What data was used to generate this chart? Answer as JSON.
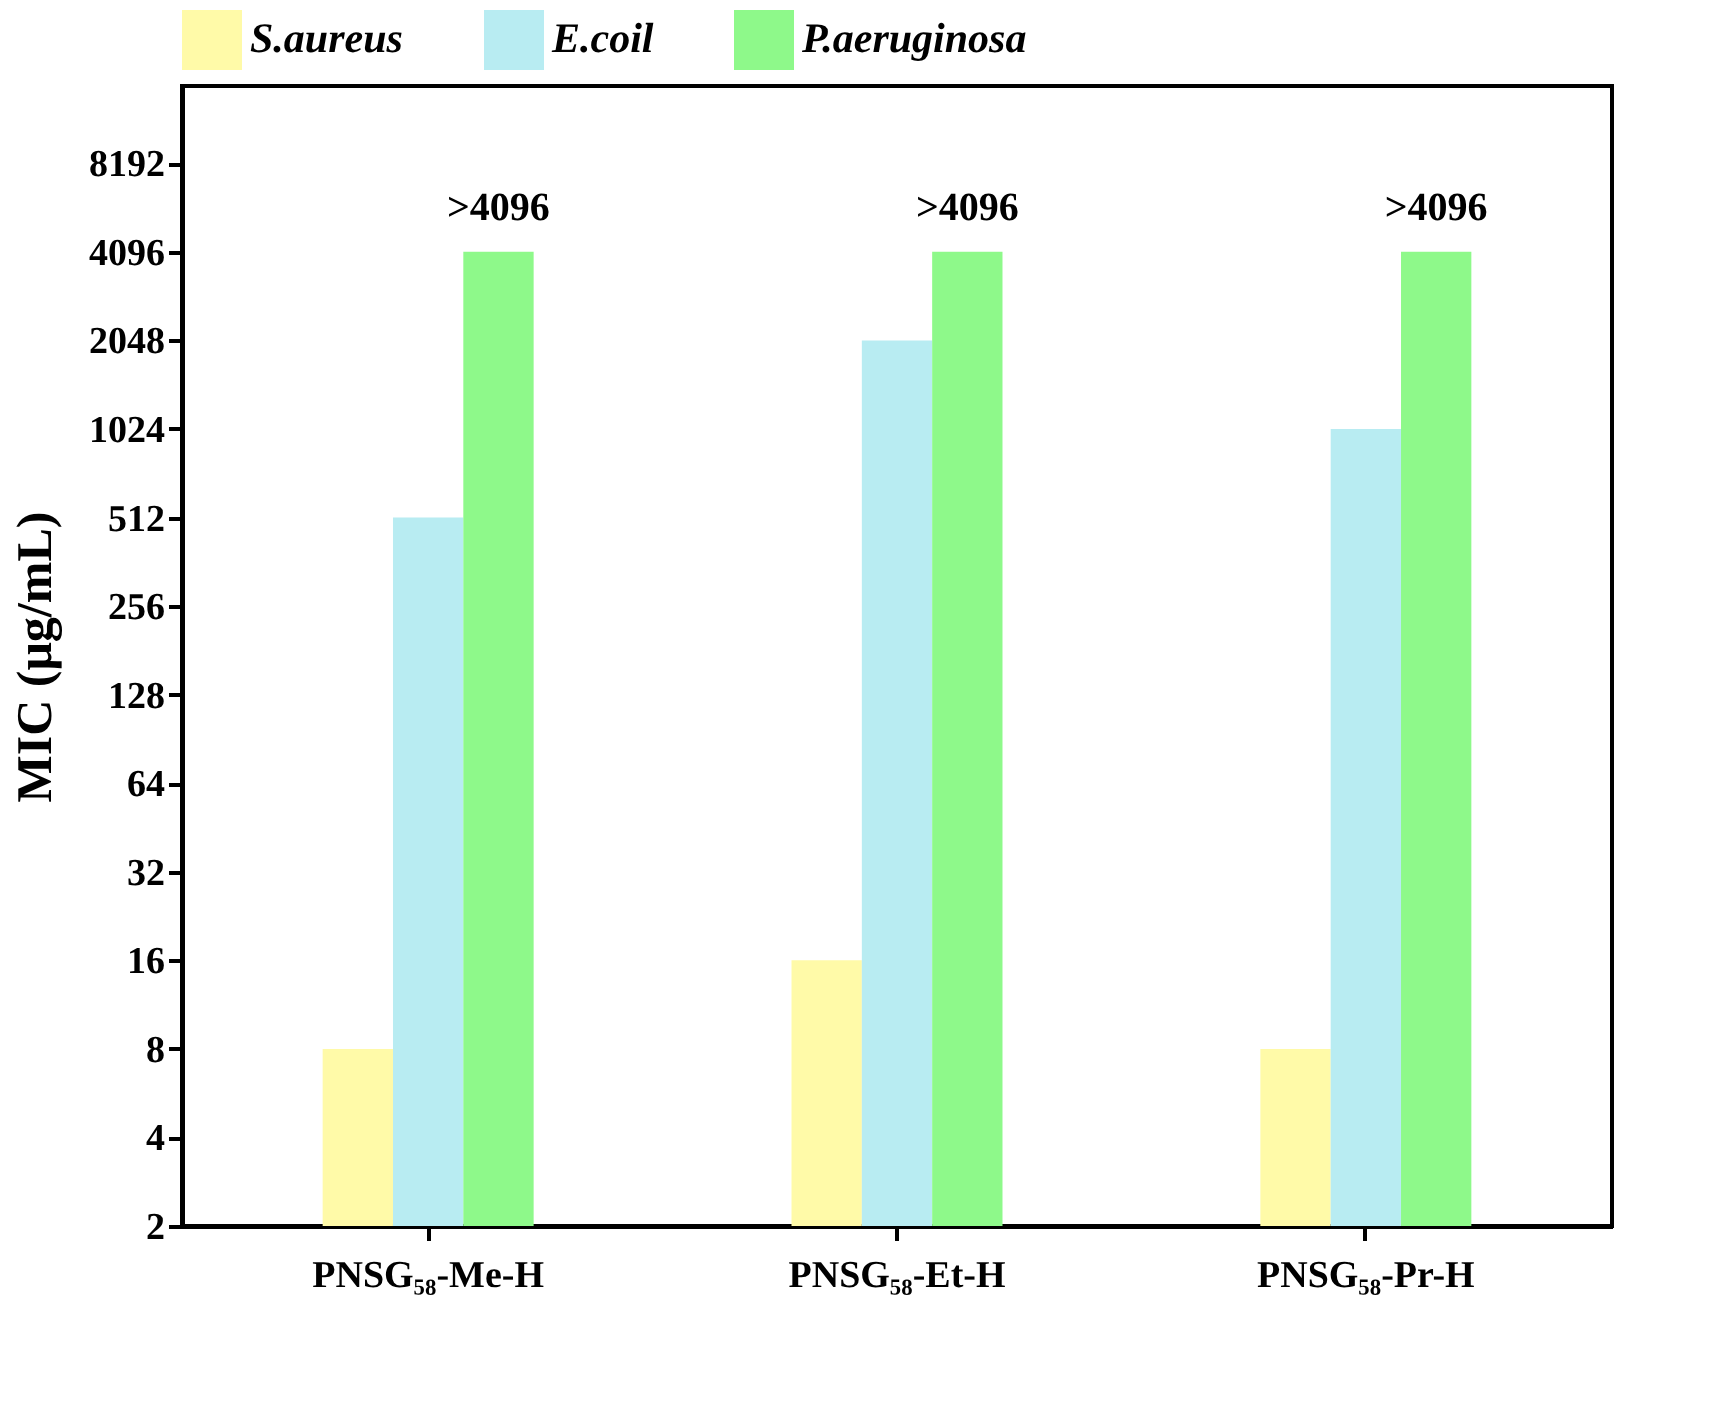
{
  "chart_data": {
    "type": "bar",
    "ylabel": "MIC (μg/mL)",
    "categories": [
      "PNSG₅₈-Me-H",
      "PNSG₅₈-Et-H",
      "PNSG₅₈-Pr-H"
    ],
    "series": [
      {
        "name": "S.aureus",
        "color": "#fffaa8",
        "values": [
          8,
          16,
          8
        ]
      },
      {
        "name": "E.coil",
        "color": "#b8ecf2",
        "values": [
          512,
          2048,
          1024
        ]
      },
      {
        "name": "P.aeruginosa",
        "color": "#8ef98a",
        "values": [
          4096,
          4096,
          4096
        ],
        "value_labels": [
          ">4096",
          ">4096",
          ">4096"
        ]
      }
    ],
    "log": "y",
    "ylim": [
      2,
      15000
    ],
    "yticks": [
      2,
      4,
      8,
      16,
      32,
      64,
      128,
      256,
      512,
      1024,
      2048,
      4096,
      8192
    ],
    "grid": false,
    "legend": "top"
  }
}
